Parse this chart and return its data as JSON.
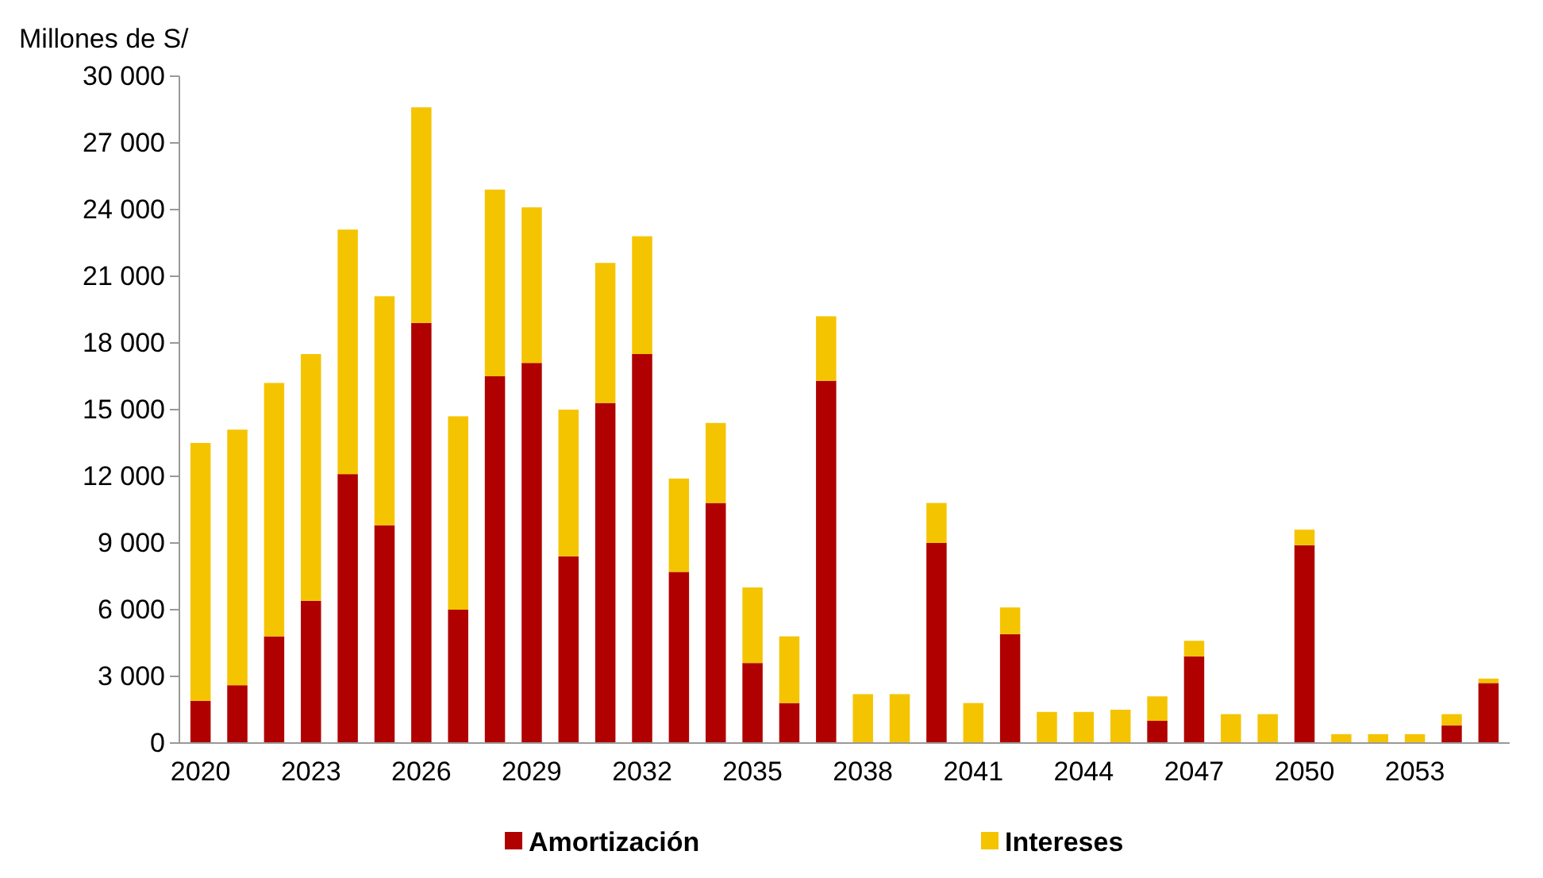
{
  "chart_data": {
    "type": "bar",
    "stacked": true,
    "ylabel": "Millones de S/",
    "categories": [
      "2020",
      null,
      null,
      "2023",
      null,
      null,
      "2026",
      null,
      null,
      "2029",
      null,
      null,
      "2032",
      null,
      null,
      "2035",
      null,
      null,
      "2038",
      null,
      null,
      "2041",
      null,
      null,
      "2044",
      null,
      null,
      "2047",
      null,
      null,
      "2050",
      null,
      null,
      "2053",
      null,
      null
    ],
    "series": [
      {
        "name": "Amortización",
        "color": "#b00000",
        "values": [
          1900,
          2600,
          4800,
          6400,
          12100,
          9800,
          18900,
          6000,
          16500,
          17100,
          8400,
          15300,
          17500,
          7700,
          10800,
          3600,
          1800,
          16300,
          0,
          0,
          9000,
          0,
          4900,
          0,
          0,
          0,
          1000,
          3900,
          0,
          0,
          8900,
          0,
          0,
          0,
          800,
          2700
        ]
      },
      {
        "name": "Intereses",
        "color": "#f5c400",
        "values": [
          11600,
          11500,
          11400,
          11100,
          11000,
          10300,
          9700,
          8700,
          8400,
          7000,
          6600,
          6300,
          5300,
          4200,
          3600,
          3400,
          3000,
          2900,
          2200,
          2200,
          1800,
          1800,
          1200,
          1400,
          1400,
          1500,
          1100,
          700,
          1300,
          1300,
          700,
          400,
          400,
          400,
          500,
          200
        ]
      }
    ],
    "ylim": [
      0,
      30000
    ],
    "yticks": [
      0,
      {
        "value": 3000,
        "label": "3 000"
      },
      {
        "value": 6000,
        "label": "6 000"
      },
      {
        "value": 9000,
        "label": "9 000"
      },
      {
        "value": 12000,
        "label": "12 000"
      },
      {
        "value": 15000,
        "label": "15 000"
      },
      {
        "value": 18000,
        "label": "18 000"
      },
      {
        "value": 21000,
        "label": "21 000"
      },
      {
        "value": 24000,
        "label": "24 000"
      },
      {
        "value": 27000,
        "label": "27 000"
      },
      {
        "value": 30000,
        "label": "30 000"
      }
    ],
    "grid": false,
    "legend": "bottom"
  }
}
